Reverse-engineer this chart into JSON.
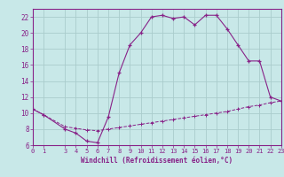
{
  "xlabel": "Windchill (Refroidissement éolien,°C)",
  "bg_color": "#c8e8e8",
  "grid_color": "#aacccc",
  "line_color": "#882288",
  "x_hours": [
    0,
    1,
    3,
    4,
    5,
    6,
    7,
    8,
    9,
    10,
    11,
    12,
    13,
    14,
    15,
    16,
    17,
    18,
    19,
    20,
    21,
    22,
    23
  ],
  "temp_values": [
    10.5,
    9.8,
    8.0,
    7.5,
    6.5,
    6.3,
    9.5,
    15.0,
    18.5,
    20.0,
    22.0,
    22.2,
    21.8,
    22.0,
    21.0,
    22.2,
    22.2,
    20.5,
    18.5,
    16.5,
    16.5,
    12.0,
    11.5
  ],
  "wc_x": [
    0,
    1,
    3,
    4,
    5,
    6,
    7,
    8,
    9,
    10,
    11,
    12,
    13,
    14,
    15,
    16,
    17,
    18,
    19,
    20,
    21,
    22,
    23
  ],
  "wc_values": [
    10.5,
    9.8,
    8.3,
    8.1,
    7.9,
    7.8,
    8.0,
    8.2,
    8.4,
    8.6,
    8.8,
    9.0,
    9.2,
    9.4,
    9.6,
    9.8,
    10.0,
    10.2,
    10.5,
    10.8,
    11.0,
    11.3,
    11.5
  ],
  "ylim": [
    6,
    23
  ],
  "xlim": [
    0,
    23
  ],
  "yticks": [
    6,
    8,
    10,
    12,
    14,
    16,
    18,
    20,
    22
  ],
  "xticks": [
    0,
    1,
    3,
    4,
    5,
    6,
    7,
    8,
    9,
    10,
    11,
    12,
    13,
    14,
    15,
    16,
    17,
    18,
    19,
    20,
    21,
    22,
    23
  ],
  "tick_fontsize": 5.0,
  "xlabel_fontsize": 5.5
}
